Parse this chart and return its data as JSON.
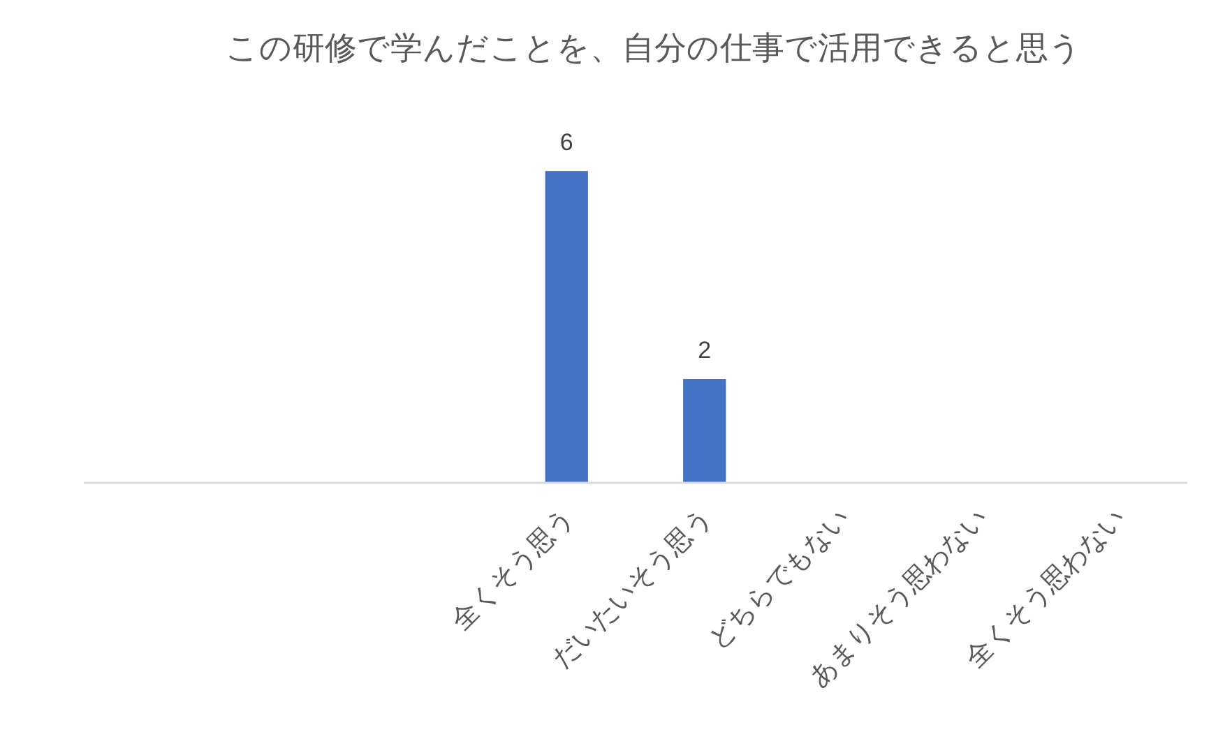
{
  "chart_data": {
    "type": "bar",
    "title": "この研修で学んだことを、自分の仕事で活用できると思う",
    "categories": [
      null,
      null,
      null,
      "全くそう思う",
      "だいたいそう思う",
      "どちらでもない",
      "あまりそう思わない",
      "全くそう思わない"
    ],
    "values": [
      null,
      null,
      null,
      6,
      2,
      null,
      null,
      null
    ],
    "color": "#4472c4",
    "data_labels": true,
    "grid": false
  }
}
